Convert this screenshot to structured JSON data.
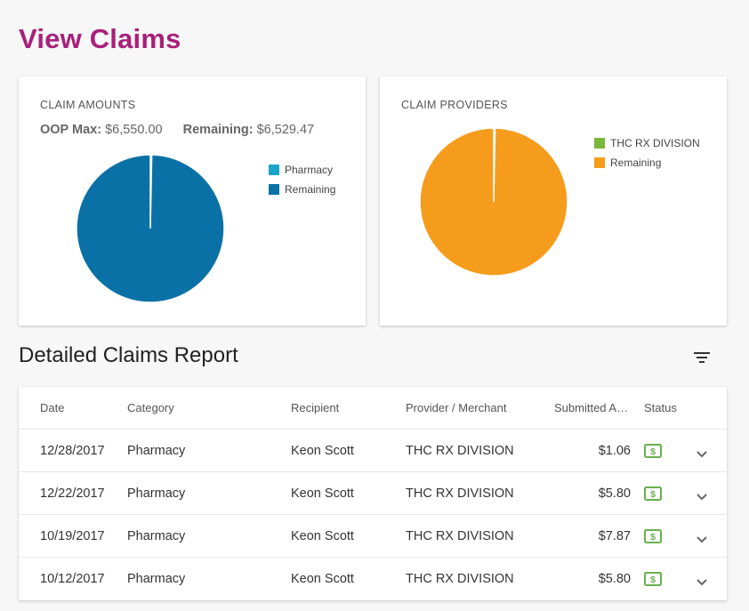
{
  "page": {
    "title": "View Claims"
  },
  "amounts_card": {
    "title": "CLAIM AMOUNTS",
    "oop_max_label": "OOP Max:",
    "oop_max_value": "$6,550.00",
    "remaining_label": "Remaining:",
    "remaining_value": "$6,529.47",
    "legend": [
      {
        "label": "Pharmacy",
        "color": "#1ba3c9"
      },
      {
        "label": "Remaining",
        "color": "#0a71a6"
      }
    ],
    "chart_data": {
      "type": "pie",
      "categories": [
        "Pharmacy",
        "Remaining"
      ],
      "values": [
        20.53,
        6529.47
      ]
    }
  },
  "providers_card": {
    "title": "CLAIM PROVIDERS",
    "legend": [
      {
        "label": "THC RX DIVISION",
        "color": "#7ab63a"
      },
      {
        "label": "Remaining",
        "color": "#f69c1c"
      }
    ],
    "chart_data": {
      "type": "pie",
      "categories": [
        "THC RX DIVISION",
        "Remaining"
      ],
      "values": [
        20.53,
        6529.47
      ]
    }
  },
  "report": {
    "title": "Detailed Claims Report",
    "filter_icon": "filter-icon",
    "columns": [
      "Date",
      "Category",
      "Recipient",
      "Provider / Merchant",
      "Submitted Amount",
      "Status"
    ],
    "rows": [
      {
        "date": "12/28/2017",
        "category": "Pharmacy",
        "recipient": "Keon Scott",
        "provider": "THC RX DIVISION",
        "amount": "$1.06",
        "status_icon": "dollar-icon"
      },
      {
        "date": "12/22/2017",
        "category": "Pharmacy",
        "recipient": "Keon Scott",
        "provider": "THC RX DIVISION",
        "amount": "$5.80",
        "status_icon": "dollar-icon"
      },
      {
        "date": "10/19/2017",
        "category": "Pharmacy",
        "recipient": "Keon Scott",
        "provider": "THC RX DIVISION",
        "amount": "$7.87",
        "status_icon": "dollar-icon"
      },
      {
        "date": "10/12/2017",
        "category": "Pharmacy",
        "recipient": "Keon Scott",
        "provider": "THC RX DIVISION",
        "amount": "$5.80",
        "status_icon": "dollar-icon"
      }
    ],
    "status_color": "#6ab04c"
  }
}
